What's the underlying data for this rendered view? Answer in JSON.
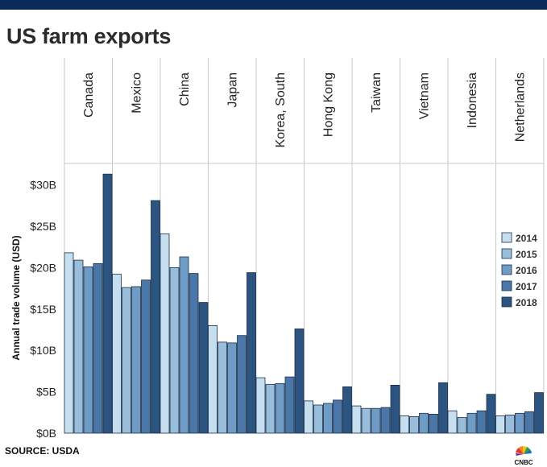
{
  "page": {
    "title": "US farm exports",
    "source": "SOURCE: USDA",
    "logo_text": "CNBC"
  },
  "colors": {
    "top_bar": "#0b2a5b",
    "series": [
      "#c5dff0",
      "#98bedb",
      "#6f9cc6",
      "#4b77a8",
      "#2c5481"
    ],
    "bar_border": "#1c2e45",
    "separator": "#c8c8c8"
  },
  "chart_data": {
    "type": "bar",
    "title": "US farm exports",
    "xlabel": "",
    "ylabel": "Annual trade volume (USD)",
    "ylim": [
      0,
      30
    ],
    "yticks": [
      "$0B",
      "$5B",
      "$10B",
      "$15B",
      "$20B",
      "$25B",
      "$30B"
    ],
    "grid": false,
    "legend_position": "right",
    "categories": [
      "Canada",
      "Mexico",
      "China",
      "Japan",
      "Korea, South",
      "Hong Kong",
      "Taiwan",
      "Vietnam",
      "Indonesia",
      "Netherlands"
    ],
    "series": [
      {
        "name": "2014",
        "values": [
          21.8,
          19.2,
          24.1,
          13.0,
          6.7,
          3.9,
          3.3,
          2.1,
          2.7,
          2.1
        ]
      },
      {
        "name": "2015",
        "values": [
          20.9,
          17.6,
          20.0,
          11.0,
          5.9,
          3.4,
          3.0,
          2.0,
          1.9,
          2.2
        ]
      },
      {
        "name": "2016",
        "values": [
          20.1,
          17.7,
          21.3,
          10.9,
          6.0,
          3.6,
          3.0,
          2.4,
          2.4,
          2.4
        ]
      },
      {
        "name": "2017",
        "values": [
          20.5,
          18.5,
          19.3,
          11.8,
          6.8,
          4.0,
          3.1,
          2.3,
          2.7,
          2.6
        ]
      },
      {
        "name": "2018",
        "values": [
          31.3,
          28.1,
          15.8,
          19.4,
          12.6,
          5.6,
          5.8,
          6.1,
          4.7,
          4.9
        ]
      }
    ]
  }
}
